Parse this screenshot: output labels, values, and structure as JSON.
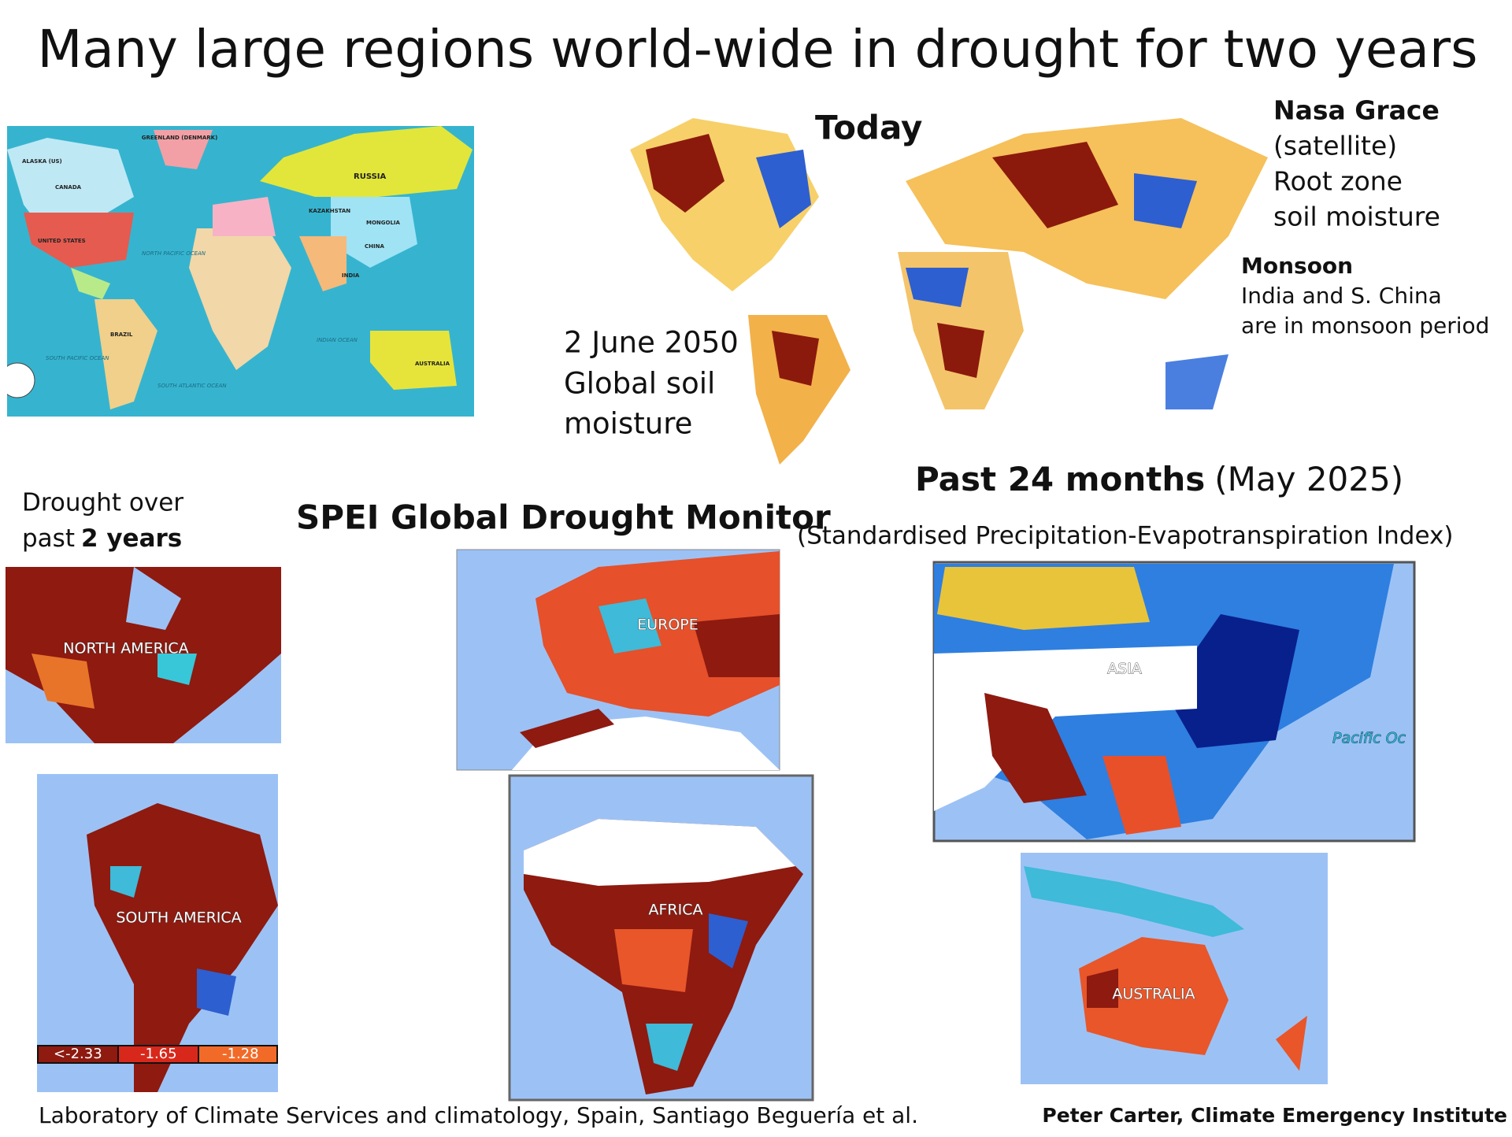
{
  "title": "Many large regions world-wide in drought  for two years",
  "world_map": {
    "labels": [
      "ALASKA (US)",
      "GREENLAND (DENMARK)",
      "CANADA",
      "RUSSIA",
      "UNITED STATES",
      "KAZAKHSTAN",
      "MONGOLIA",
      "CHINA",
      "INDIA",
      "NORTH PACIFIC OCEAN",
      "BRAZIL",
      "INDIAN OCEAN",
      "SOUTH PACIFIC OCEAN",
      "SOUTH ATLANTIC OCEAN",
      "AUSTRALIA"
    ]
  },
  "grace_map": {
    "heading": "Today",
    "date_lines": [
      "2 June 2050",
      "Global soil",
      "moisture"
    ],
    "source_lines": [
      "Nasa Grace",
      "(satellite)",
      "Root zone",
      "soil moisture"
    ],
    "monsoon": {
      "heading": "Monsoon",
      "lines": [
        "India and S. China",
        "are in monsoon period"
      ]
    }
  },
  "spei": {
    "title": "SPEI Global Drought Monitor",
    "period": "Past 24 months",
    "period_date": "(May 2025)",
    "subtitle": "(Standardised Precipitation-Evapotranspiration Index)",
    "caption": {
      "line1": "Drought over",
      "line2_plain": "past",
      "line2_bold": "2 years"
    },
    "regions": {
      "north_america": "NORTH AMERICA",
      "europe": "EUROPE",
      "asia": "ASIA",
      "pacific": "Pacific Oc",
      "south_america": "SOUTH AMERICA",
      "africa": "AFRICA",
      "australia": "AUSTRALIA"
    },
    "legend": [
      "<-2.33",
      "-1.65",
      "-1.28"
    ]
  },
  "footer": {
    "left": "Laboratory of Climate Services and climatology, Spain,   Santiago Beguería et al.",
    "right": "Peter Carter, Climate Emergency Institute"
  }
}
